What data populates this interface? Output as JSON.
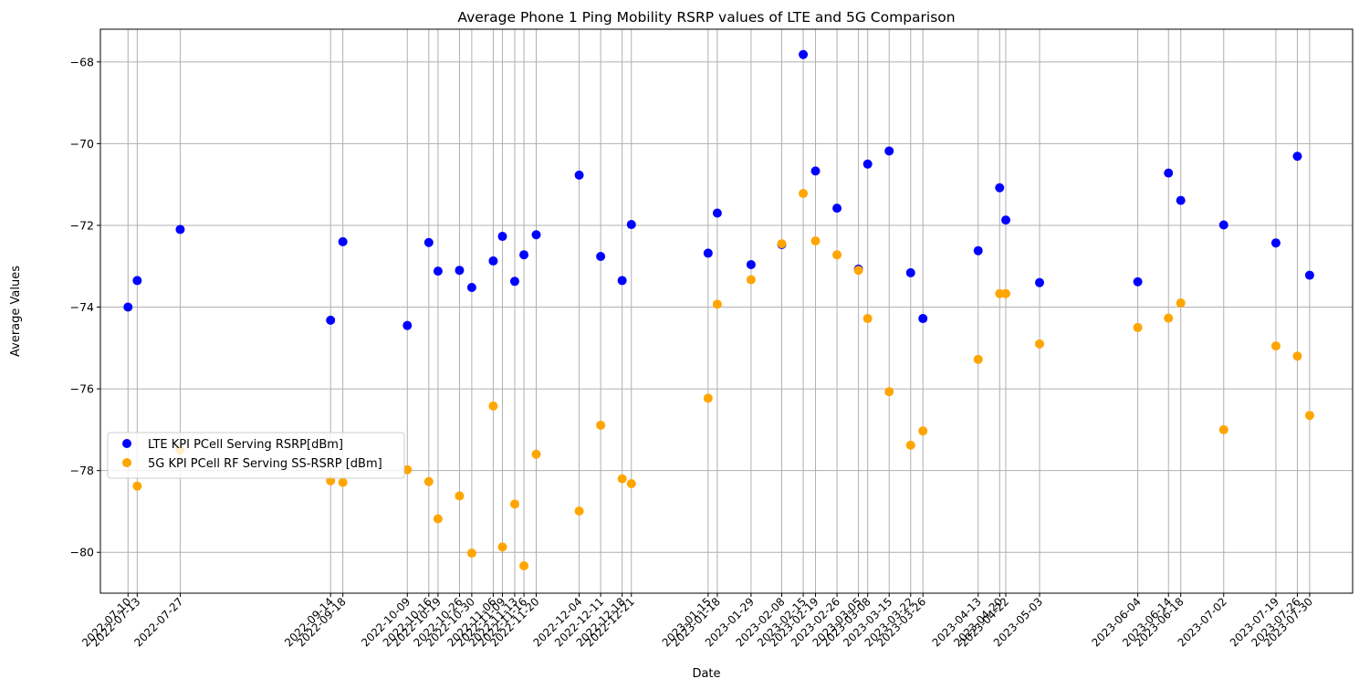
{
  "chart_data": {
    "type": "scatter",
    "title": "Average Phone 1 Ping Mobility RSRP values of LTE and 5G Comparison",
    "xlabel": "Date",
    "ylabel": "Average Values",
    "xlim": [
      "2022-07-01",
      "2023-08-13"
    ],
    "ylim": [
      -81,
      -67.2
    ],
    "yticks": [
      -80,
      -78,
      -76,
      -74,
      -72,
      -70,
      -68
    ],
    "grid": true,
    "legend_position": "center-left",
    "x": [
      "2022-07-10",
      "2022-07-13",
      "2022-07-27",
      "2022-09-14",
      "2022-09-18",
      "2022-10-09",
      "2022-10-16",
      "2022-10-19",
      "2022-10-26",
      "2022-10-30",
      "2022-11-06",
      "2022-11-09",
      "2022-11-13",
      "2022-11-16",
      "2022-11-20",
      "2022-12-04",
      "2022-12-11",
      "2022-12-18",
      "2022-12-21",
      "2023-01-15",
      "2023-01-18",
      "2023-01-29",
      "2023-02-08",
      "2023-02-15",
      "2023-02-19",
      "2023-02-26",
      "2023-03-05",
      "2023-03-08",
      "2023-03-15",
      "2023-03-22",
      "2023-03-26",
      "2023-04-13",
      "2023-04-20",
      "2023-04-22",
      "2023-05-03",
      "2023-06-04",
      "2023-06-14",
      "2023-06-18",
      "2023-07-02",
      "2023-07-19",
      "2023-07-26",
      "2023-07-30"
    ],
    "series": [
      {
        "name": "LTE KPI PCell Serving RSRP[dBm]",
        "color": "#0000ff",
        "values": [
          -74.0,
          -73.35,
          -72.1,
          -74.32,
          -72.4,
          -74.45,
          -72.42,
          -73.12,
          -73.1,
          -73.52,
          -72.87,
          -72.27,
          -73.37,
          -72.72,
          -72.23,
          -70.77,
          -72.76,
          -73.35,
          -71.98,
          -72.68,
          -71.7,
          -72.96,
          -72.47,
          -67.82,
          -70.67,
          -71.58,
          -73.07,
          -70.5,
          -70.18,
          -73.16,
          -74.28,
          -72.62,
          -71.08,
          -71.87,
          -73.4,
          -73.38,
          -70.72,
          -71.39,
          -71.99,
          -72.43,
          -70.31,
          -73.22
        ]
      },
      {
        "name": "5G KPI PCell RF Serving SS-RSRP [dBm]",
        "color": "#ffa500",
        "values": [
          null,
          -78.38,
          -77.5,
          -78.25,
          -78.29,
          -77.98,
          -78.27,
          -79.18,
          -78.62,
          -80.02,
          -76.42,
          -79.87,
          -78.82,
          -80.33,
          -77.6,
          -78.99,
          -76.89,
          -78.2,
          -78.32,
          -76.23,
          -73.93,
          -73.33,
          -72.45,
          -71.22,
          -72.38,
          -72.72,
          -73.1,
          -74.28,
          -76.07,
          -77.38,
          -77.03,
          -75.28,
          -73.67,
          -73.67,
          -74.9,
          -74.5,
          -74.27,
          -73.9,
          -77.0,
          -74.95,
          -75.2,
          -76.65
        ]
      }
    ]
  }
}
